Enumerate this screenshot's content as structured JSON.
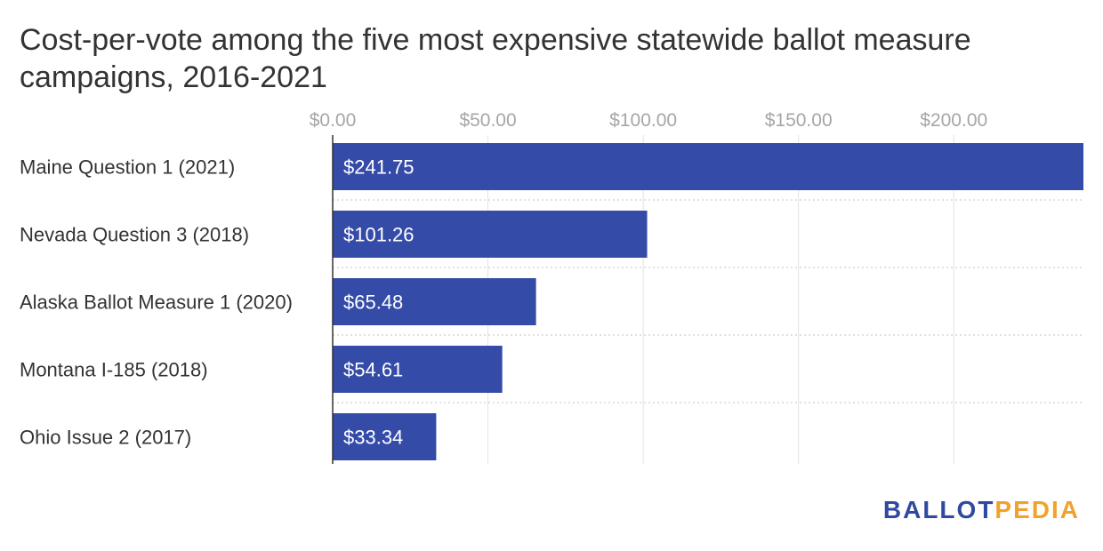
{
  "chart_data": {
    "type": "bar",
    "orientation": "horizontal",
    "title": "Cost-per-vote among the five most expensive statewide ballot measure campaigns, 2016-2021",
    "categories": [
      "Maine Question 1 (2021)",
      "Nevada Question 3 (2018)",
      "Alaska Ballot Measure 1 (2020)",
      "Montana I-185 (2018)",
      "Ohio Issue 2 (2017)"
    ],
    "values": [
      241.75,
      101.26,
      65.48,
      54.61,
      33.34
    ],
    "data_labels": [
      "$241.75",
      "$101.26",
      "$65.48",
      "$54.61",
      "$33.34"
    ],
    "x_ticks": [
      0,
      50,
      100,
      150,
      200
    ],
    "x_tick_labels": [
      "$0.00",
      "$50.00",
      "$100.00",
      "$150.00",
      "$200.00"
    ],
    "xlim": [
      0,
      241.75
    ],
    "grid": true,
    "bar_color": "#354ba8"
  },
  "brand": {
    "part1": "BALLOT",
    "part2": "PEDIA",
    "color1": "#3049a0",
    "color2": "#f0a22c"
  }
}
